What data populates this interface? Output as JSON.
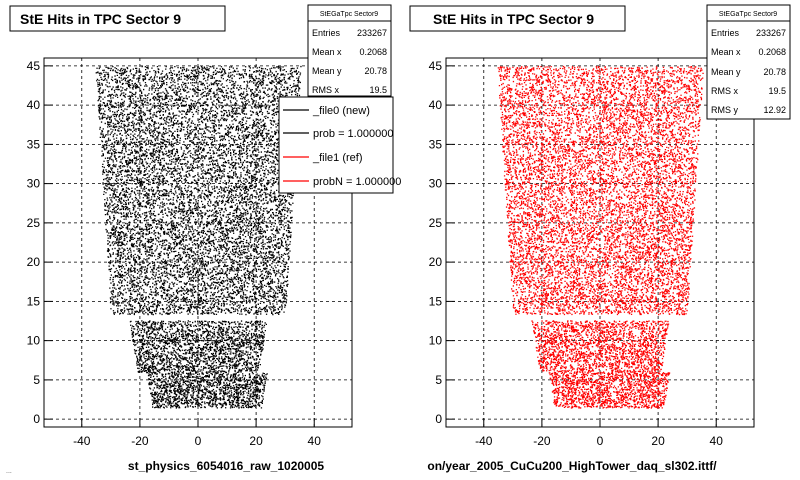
{
  "chart_data": [
    {
      "type": "scatter",
      "title": "StE Hits in TPC Sector 9",
      "xlim": [
        -53,
        53
      ],
      "ylim": [
        -1,
        46
      ],
      "xticks": [
        -40,
        -20,
        0,
        20,
        40
      ],
      "yticks": [
        0,
        5,
        10,
        15,
        20,
        25,
        30,
        35,
        40,
        45
      ],
      "grid": true,
      "marker_color": "#000000",
      "stats": {
        "name": "StEGaTpc Sector9",
        "rows": [
          {
            "label": "Entries",
            "value": "233267"
          },
          {
            "label": "Mean x",
            "value": "0.2068"
          },
          {
            "label": "Mean y",
            "value": "20.78"
          },
          {
            "label": "RMS x",
            "value": "19.5"
          }
        ]
      },
      "legend": {
        "position": "top-right",
        "entries": [
          {
            "label": "_file0 (new)",
            "color": "#000000"
          },
          {
            "label": "prob = 1.000000",
            "color": "#000000"
          },
          {
            "label": "_file1 (ref)",
            "color": "#ff0000"
          },
          {
            "label": "probN = 1.000000",
            "color": "#ff0000"
          }
        ]
      },
      "footer": "st_physics_6054016_raw_1020005"
    },
    {
      "type": "scatter",
      "title": "StE Hits in TPC Sector 9",
      "xlim": [
        -53,
        53
      ],
      "ylim": [
        -1,
        46
      ],
      "xticks": [
        -40,
        -20,
        0,
        20,
        40
      ],
      "yticks": [
        0,
        5,
        10,
        15,
        20,
        25,
        30,
        35,
        40,
        45
      ],
      "grid": true,
      "marker_color": "#ff0000",
      "stats": {
        "name": "StEGaTpc Sector9",
        "rows": [
          {
            "label": "Entries",
            "value": "233267"
          },
          {
            "label": "Mean x",
            "value": "0.2068"
          },
          {
            "label": "Mean y",
            "value": "20.78"
          },
          {
            "label": "RMS x",
            "value": "19.5"
          },
          {
            "label": "RMS y",
            "value": "12.92"
          }
        ]
      },
      "footer": "on/year_2005_CuCu200_HighTower_daq_sl302.ittf/"
    }
  ],
  "corner_note": "..."
}
